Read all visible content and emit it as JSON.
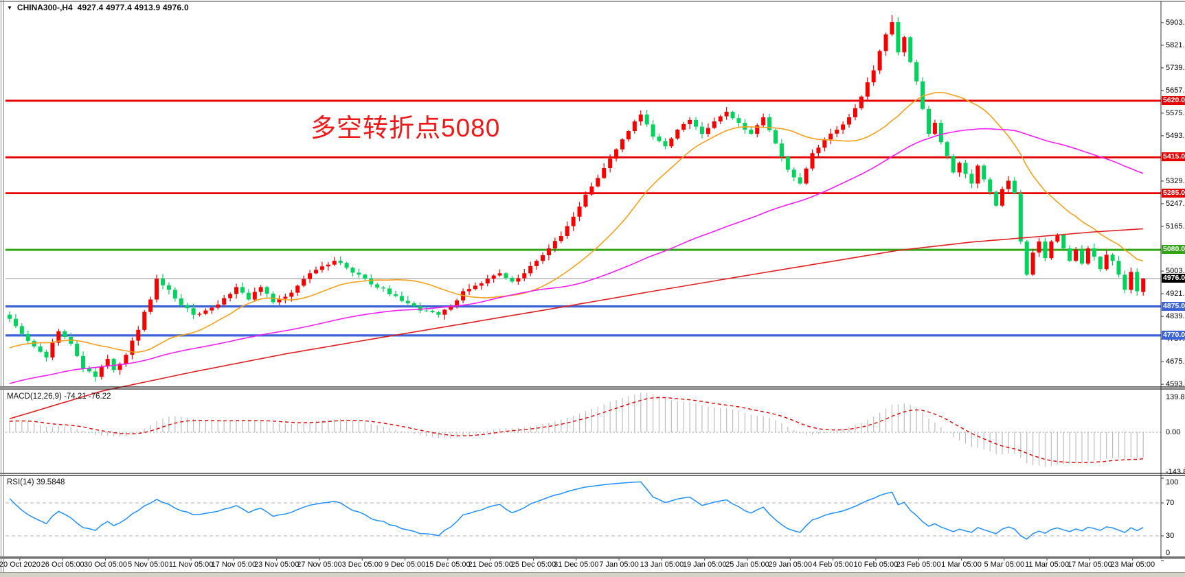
{
  "title_bar": {
    "dropdown_icon": "▼",
    "symbol": "CHINA300-,H4",
    "ohlc_text": "4927.4 4977.4 4913.9 4976.0"
  },
  "annotation": {
    "text": "多空转折点5080",
    "color": "#f21717"
  },
  "indicators": {
    "macd": {
      "label": "MACD(12,26,9) -74.21 -76.22",
      "name": "MACD",
      "params": "12,26,9",
      "values": [
        -74.21,
        -76.22
      ],
      "scale_labels": [
        "139.86",
        "0.00",
        "-143.82"
      ],
      "histogram_color": "#bdbdbd",
      "signal_color": "#e60000"
    },
    "rsi": {
      "label": "RSI(14) 39.5848",
      "name": "RSI",
      "params": "14",
      "value": 39.5848,
      "scale_labels": [
        "100",
        "70",
        "30",
        "0"
      ],
      "levels": [
        70,
        30
      ],
      "color": "#1e8fff"
    }
  },
  "axes": {
    "price_ticks": [
      5903.0,
      5821.0,
      5739.0,
      5657.0,
      5575.0,
      5493.0,
      5329.0,
      5247.0,
      5165.0,
      5003.0,
      4921.0,
      4839.0,
      4757.0,
      4675.0,
      4593.0
    ],
    "time_ticks": [
      "20 Oct 2020",
      "26 Oct 05:00",
      "30 Oct 05:00",
      "5 Nov 05:00",
      "11 Nov 05:00",
      "17 Nov 05:00",
      "23 Nov 05:00",
      "27 Nov 05:00",
      "3 Dec 05:00",
      "9 Dec 05:00",
      "15 Dec 05:00",
      "21 Dec 05:00",
      "25 Dec 05:00",
      "31 Dec 05:00",
      "7 Jan 05:00",
      "13 Jan 05:00",
      "19 Jan 05:00",
      "25 Jan 05:00",
      "29 Jan 05:00",
      "4 Feb 05:00",
      "10 Feb 05:00",
      "23 Feb 05:00",
      "1 Mar 05:00",
      "5 Mar 05:00",
      "11 Mar 05:00",
      "17 Mar 05:00",
      "23 Mar 05:00"
    ]
  },
  "levels": [
    {
      "price": 5620.0,
      "label": "5620.0",
      "color": "#e60000",
      "width": 2.8
    },
    {
      "price": 5415.0,
      "label": "5415.0",
      "color": "#e60000",
      "width": 2.8
    },
    {
      "price": 5285.0,
      "label": "5285.0",
      "color": "#e60000",
      "width": 2.8
    },
    {
      "price": 5080.0,
      "label": "5080.0",
      "color": "#2fa414",
      "width": 3.0
    },
    {
      "price": 4875.0,
      "label": "4875.0",
      "color": "#3c64d7",
      "width": 3.2
    },
    {
      "price": 4770.0,
      "label": "4770.0",
      "color": "#3c64d7",
      "width": 3.2
    }
  ],
  "current_price": {
    "value": 4976.0,
    "label": "4976.0",
    "line_color": "#8c9196",
    "badge_bg": "#000000"
  },
  "chart_data": [
    {
      "type": "candlestick",
      "title": "CHINA300-,H4",
      "symbol": "CHINA300-",
      "timeframe": "H4",
      "bars": 186,
      "up_color": "#f60000",
      "down_color": "#00d35c",
      "ylim": [
        4593.0,
        5945.0
      ],
      "x_range": [
        "20 Oct 2020",
        "23 Mar 05:00"
      ],
      "session_high": 5930.0,
      "session_low": 4602.0,
      "last_bar": {
        "open": 4927.4,
        "high": 4977.4,
        "low": 4913.9,
        "close": 4976.0
      },
      "close_path_anchors": [
        [
          0,
          4830
        ],
        [
          2,
          4775
        ],
        [
          4,
          4730
        ],
        [
          6,
          4690
        ],
        [
          8,
          4785
        ],
        [
          10,
          4740
        ],
        [
          12,
          4650
        ],
        [
          14,
          4620
        ],
        [
          16,
          4685
        ],
        [
          17,
          4645
        ],
        [
          19,
          4700
        ],
        [
          21,
          4790
        ],
        [
          22,
          4855
        ],
        [
          23,
          4900
        ],
        [
          24,
          4975
        ],
        [
          26,
          4935
        ],
        [
          28,
          4880
        ],
        [
          30,
          4845
        ],
        [
          33,
          4870
        ],
        [
          35,
          4905
        ],
        [
          37,
          4945
        ],
        [
          39,
          4900
        ],
        [
          41,
          4945
        ],
        [
          43,
          4890
        ],
        [
          45,
          4910
        ],
        [
          47,
          4950
        ],
        [
          49,
          4995
        ],
        [
          51,
          5020
        ],
        [
          53,
          5040
        ],
        [
          55,
          5015
        ],
        [
          57,
          4990
        ],
        [
          59,
          4955
        ],
        [
          61,
          4940
        ],
        [
          64,
          4895
        ],
        [
          67,
          4860
        ],
        [
          70,
          4845
        ],
        [
          72,
          4875
        ],
        [
          74,
          4930
        ],
        [
          76,
          4950
        ],
        [
          78,
          4975
        ],
        [
          80,
          4995
        ],
        [
          82,
          4965
        ],
        [
          84,
          4995
        ],
        [
          86,
          5040
        ],
        [
          88,
          5085
        ],
        [
          90,
          5130
        ],
        [
          92,
          5200
        ],
        [
          94,
          5280
        ],
        [
          96,
          5340
        ],
        [
          98,
          5410
        ],
        [
          100,
          5480
        ],
        [
          102,
          5545
        ],
        [
          103,
          5570
        ],
        [
          105,
          5490
        ],
        [
          107,
          5455
        ],
        [
          109,
          5515
        ],
        [
          111,
          5550
        ],
        [
          113,
          5500
        ],
        [
          115,
          5545
        ],
        [
          117,
          5580
        ],
        [
          119,
          5540
        ],
        [
          121,
          5500
        ],
        [
          123,
          5560
        ],
        [
          125,
          5465
        ],
        [
          127,
          5370
        ],
        [
          129,
          5320
        ],
        [
          131,
          5430
        ],
        [
          133,
          5480
        ],
        [
          135,
          5515
        ],
        [
          137,
          5560
        ],
        [
          139,
          5635
        ],
        [
          141,
          5730
        ],
        [
          142,
          5800
        ],
        [
          143,
          5860
        ],
        [
          144,
          5905
        ],
        [
          145,
          5795
        ],
        [
          146,
          5850
        ],
        [
          147,
          5760
        ],
        [
          148,
          5690
        ],
        [
          149,
          5590
        ],
        [
          150,
          5500
        ],
        [
          151,
          5540
        ],
        [
          152,
          5470
        ],
        [
          153,
          5420
        ],
        [
          154,
          5360
        ],
        [
          155,
          5395
        ],
        [
          156,
          5355
        ],
        [
          157,
          5320
        ],
        [
          158,
          5385
        ],
        [
          159,
          5335
        ],
        [
          160,
          5290
        ],
        [
          161,
          5240
        ],
        [
          162,
          5300
        ],
        [
          163,
          5330
        ],
        [
          164,
          5285
        ],
        [
          165,
          5110
        ],
        [
          166,
          4990
        ],
        [
          167,
          5070
        ],
        [
          168,
          5110
        ],
        [
          169,
          5050
        ],
        [
          170,
          5110
        ],
        [
          171,
          5135
        ],
        [
          172,
          5085
        ],
        [
          173,
          5040
        ],
        [
          174,
          5080
        ],
        [
          175,
          5030
        ],
        [
          176,
          5085
        ],
        [
          177,
          5055
        ],
        [
          178,
          5010
        ],
        [
          179,
          5062
        ],
        [
          180,
          5040
        ],
        [
          181,
          4990
        ],
        [
          182,
          4935
        ],
        [
          183,
          5000
        ],
        [
          184,
          4930
        ],
        [
          185,
          4976
        ]
      ],
      "moving_averages": [
        {
          "name": "fast-ma",
          "color": "#f8a01a",
          "period": 20
        },
        {
          "name": "medium-ma",
          "color": "#f41df4",
          "period": 65
        },
        {
          "name": "slow-ma",
          "color": "#e02020",
          "anchors": [
            [
              0,
              4468
            ],
            [
              15,
              4568
            ],
            [
              30,
              4638
            ],
            [
              45,
              4703
            ],
            [
              60,
              4760
            ],
            [
              75,
              4816
            ],
            [
              90,
              4872
            ],
            [
              105,
              4930
            ],
            [
              120,
              4986
            ],
            [
              132,
              5030
            ],
            [
              145,
              5078
            ],
            [
              157,
              5108
            ],
            [
              168,
              5128
            ],
            [
              177,
              5145
            ],
            [
              185,
              5156
            ]
          ]
        }
      ],
      "prehistory": {
        "start": 4380,
        "end": 4770,
        "bars": 70
      }
    },
    {
      "type": "bar",
      "title": "MACD(12,26,9)",
      "current_values": [
        -74.21,
        -76.22
      ],
      "ylim": [
        -143.82,
        139.86
      ],
      "zero_line": 0.0,
      "histogram_color": "#bdbdbd",
      "signal_color": "#e60000",
      "signal_style": "dashed",
      "derived_from": "candlestick closes, EMA(12)-EMA(26), signal EMA(9)"
    },
    {
      "type": "line",
      "title": "RSI(14)",
      "current_value": 39.5848,
      "ylim": [
        0,
        100
      ],
      "overbought": 70,
      "oversold": 30,
      "color": "#1e8fff",
      "derived_from": "candlestick closes, Wilder RSI period 14"
    }
  ]
}
